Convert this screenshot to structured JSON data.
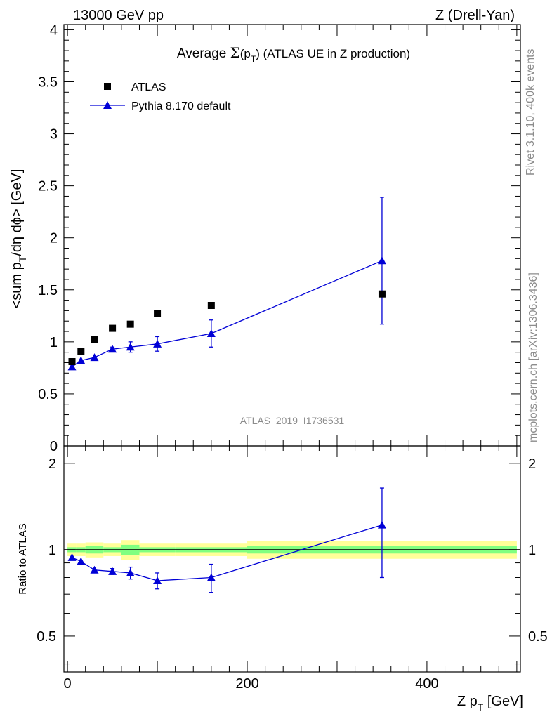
{
  "header": {
    "left": "13000 GeV pp",
    "right": "Z (Drell-Yan)"
  },
  "side_labels": {
    "rivet": "Rivet 3.1.10,  400k events",
    "mcplots": "mcplots.cern.ch [arXiv:1306.3436]"
  },
  "watermark": "ATLAS_2019_I1736531",
  "colors": {
    "data": "#000000",
    "mc": "#0000d6",
    "band_outer": "#ffff99",
    "band_inner": "#80ff80"
  },
  "chart_data": [
    {
      "type": "scatter",
      "title_prefix": "Average ",
      "title_sigma": "Σ",
      "title_arg": "(p",
      "title_sub": "T",
      "title_close": ")",
      "title_suffix": " (ATLAS UE in Z production)",
      "ylabel_pre": "<sum p",
      "ylabel_sub": "T",
      "ylabel_post": "/dη dϕ> [GeV]",
      "xlim": [
        -4,
        504
      ],
      "ylim": [
        0,
        4.05
      ],
      "yticks": [
        0,
        0.5,
        1,
        1.5,
        2,
        2.5,
        3,
        3.5,
        4
      ],
      "ytick_labels": [
        "0",
        "0.5",
        "1",
        "1.5",
        "2",
        "2.5",
        "3",
        "3.5",
        "4"
      ],
      "legend": [
        {
          "label": "ATLAS",
          "marker": "square"
        },
        {
          "label": "Pythia 8.170 default",
          "marker": "triangle"
        }
      ],
      "series": [
        {
          "name": "ATLAS",
          "x": [
            5,
            15,
            30,
            50,
            70,
            100,
            160,
            350
          ],
          "y": [
            0.81,
            0.91,
            1.02,
            1.13,
            1.17,
            1.27,
            1.35,
            1.46
          ]
        },
        {
          "name": "Pythia 8.170 default",
          "x": [
            5,
            15,
            30,
            50,
            70,
            100,
            160,
            350
          ],
          "y": [
            0.76,
            0.82,
            0.85,
            0.93,
            0.95,
            0.98,
            1.08,
            1.78
          ],
          "err": [
            0.01,
            0.01,
            0.01,
            0.02,
            0.05,
            0.07,
            0.13,
            0.61
          ]
        }
      ]
    },
    {
      "type": "scatter",
      "ylabel": "Ratio to ATLAS",
      "xlabel_pre": "Z p",
      "xlabel_sub": "T",
      "xlabel_post": " [GeV]",
      "xlim": [
        -4,
        504
      ],
      "ylim": [
        0.375,
        2.3
      ],
      "yscale": "log",
      "yticks": [
        0.5,
        1,
        2
      ],
      "ytick_labels": [
        "0.5",
        "1",
        "2"
      ],
      "xticks": [
        0,
        200,
        400
      ],
      "xtick_labels": [
        "0",
        "200",
        "400"
      ],
      "band": {
        "x_edges": [
          0,
          10,
          20,
          40,
          60,
          80,
          120,
          200,
          500
        ],
        "outer": [
          0.05,
          0.05,
          0.06,
          0.05,
          0.08,
          0.05,
          0.05,
          0.07
        ],
        "inner": [
          0.02,
          0.02,
          0.03,
          0.02,
          0.04,
          0.02,
          0.02,
          0.03
        ]
      },
      "series": [
        {
          "name": "Pythia 8.170 default",
          "x": [
            5,
            15,
            30,
            50,
            70,
            100,
            160,
            350
          ],
          "y": [
            0.94,
            0.91,
            0.85,
            0.84,
            0.83,
            0.78,
            0.8,
            1.22
          ],
          "err": [
            0.01,
            0.01,
            0.01,
            0.02,
            0.04,
            0.05,
            0.09,
            0.42
          ]
        }
      ]
    }
  ]
}
